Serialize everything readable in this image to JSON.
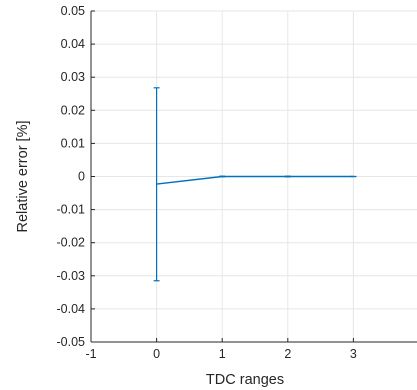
{
  "chart_data": {
    "type": "line",
    "xlabel": "TDC ranges",
    "ylabel": "Relative error [%]",
    "xlim": [
      -1,
      4
    ],
    "ylim": [
      -0.05,
      0.05
    ],
    "x_ticks": [
      -1,
      0,
      1,
      2,
      3
    ],
    "x_tick_labels": [
      "-1",
      "0",
      "1",
      "2",
      "3"
    ],
    "y_ticks": [
      -0.05,
      -0.04,
      -0.03,
      -0.02,
      -0.01,
      0,
      0.01,
      0.02,
      0.03,
      0.04,
      0.05
    ],
    "y_tick_labels": [
      "-0.05",
      "-0.04",
      "-0.03",
      "-0.02",
      "-0.01",
      "0",
      "0.01",
      "0.02",
      "0.03",
      "0.04",
      "0.05"
    ],
    "grid": true,
    "series": [
      {
        "color": "#0072BD",
        "x": [
          0,
          1,
          2,
          3
        ],
        "y": [
          -0.0023,
          0.0,
          0.0,
          0.0
        ],
        "err_low": [
          -0.0315,
          -0.0001,
          -0.0001,
          0.0
        ],
        "err_high": [
          0.0268,
          0.0001,
          0.0001,
          0.0
        ]
      }
    ]
  }
}
